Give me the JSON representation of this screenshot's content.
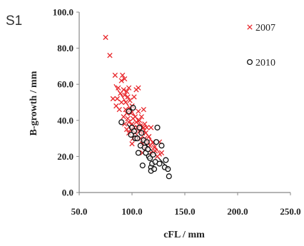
{
  "panel_label": "S1",
  "colors": {
    "s2007": "#e8262b",
    "s2010": "#111111",
    "axis": "#888888"
  },
  "chart_data": {
    "type": "scatter",
    "xlabel": "cFL / mm",
    "ylabel": "B-growth / mm",
    "xlim": [
      50,
      250
    ],
    "ylim": [
      0,
      100
    ],
    "xticks": [
      "50.0",
      "100.0",
      "150.0",
      "200.0",
      "250.0"
    ],
    "yticks": [
      "0.0",
      "20.0",
      "40.0",
      "60.0",
      "80.0",
      "100.0"
    ],
    "legend_position": "top-right",
    "series": [
      {
        "name": "2007",
        "marker": "x",
        "points": [
          [
            75,
            86
          ],
          [
            79,
            76
          ],
          [
            82,
            52
          ],
          [
            84,
            65
          ],
          [
            85,
            48
          ],
          [
            86,
            52
          ],
          [
            87,
            58
          ],
          [
            88,
            46
          ],
          [
            89,
            55
          ],
          [
            90,
            50
          ],
          [
            90,
            62
          ],
          [
            91,
            65
          ],
          [
            92,
            42
          ],
          [
            92,
            57
          ],
          [
            93,
            54
          ],
          [
            93,
            63
          ],
          [
            94,
            46
          ],
          [
            94,
            50
          ],
          [
            95,
            44
          ],
          [
            95,
            56
          ],
          [
            96,
            41
          ],
          [
            96,
            53
          ],
          [
            97,
            39
          ],
          [
            97,
            58
          ],
          [
            98,
            46
          ],
          [
            98,
            51
          ],
          [
            99,
            35
          ],
          [
            99,
            44
          ],
          [
            100,
            38
          ],
          [
            100,
            48
          ],
          [
            101,
            30
          ],
          [
            101,
            41
          ],
          [
            102,
            36
          ],
          [
            102,
            53
          ],
          [
            103,
            33
          ],
          [
            103,
            42
          ],
          [
            104,
            39
          ],
          [
            104,
            57
          ],
          [
            105,
            30
          ],
          [
            105,
            36
          ],
          [
            106,
            45
          ],
          [
            106,
            58
          ],
          [
            107,
            34
          ],
          [
            107,
            40
          ],
          [
            108,
            30
          ],
          [
            108,
            37
          ],
          [
            109,
            42
          ],
          [
            110,
            27
          ],
          [
            110,
            33
          ],
          [
            111,
            36
          ],
          [
            111,
            46
          ],
          [
            112,
            30
          ],
          [
            112,
            38
          ],
          [
            113,
            24
          ],
          [
            113,
            33
          ],
          [
            114,
            36
          ],
          [
            115,
            28
          ],
          [
            116,
            31
          ],
          [
            117,
            26
          ],
          [
            118,
            36
          ],
          [
            118,
            22
          ],
          [
            120,
            28
          ],
          [
            121,
            25
          ],
          [
            122,
            23
          ],
          [
            124,
            20
          ],
          [
            126,
            28
          ],
          [
            128,
            22
          ],
          [
            97,
            33
          ],
          [
            93,
            38
          ],
          [
            100,
            27
          ],
          [
            95,
            35
          ],
          [
            110,
            22
          ]
        ],
        "trendline": [
          [
            83,
            60
          ],
          [
            128,
            20
          ]
        ]
      },
      {
        "name": "2010",
        "marker": "circle",
        "points": [
          [
            90,
            39
          ],
          [
            97,
            45
          ],
          [
            99,
            32
          ],
          [
            100,
            36
          ],
          [
            101,
            47
          ],
          [
            102,
            34
          ],
          [
            103,
            30
          ],
          [
            105,
            30
          ],
          [
            106,
            22
          ],
          [
            107,
            36
          ],
          [
            108,
            26
          ],
          [
            109,
            33
          ],
          [
            110,
            15
          ],
          [
            111,
            29
          ],
          [
            112,
            25
          ],
          [
            113,
            22
          ],
          [
            114,
            28
          ],
          [
            115,
            24
          ],
          [
            116,
            20
          ],
          [
            117,
            19
          ],
          [
            118,
            14
          ],
          [
            118,
            12
          ],
          [
            119,
            16
          ],
          [
            120,
            21
          ],
          [
            121,
            13
          ],
          [
            122,
            17
          ],
          [
            123,
            28
          ],
          [
            124,
            36
          ],
          [
            126,
            16
          ],
          [
            128,
            26
          ],
          [
            131,
            14
          ],
          [
            132,
            18
          ],
          [
            134,
            13
          ],
          [
            135,
            9
          ]
        ],
        "trendline": [
          [
            95,
            38
          ],
          [
            135,
            13
          ]
        ]
      }
    ]
  }
}
